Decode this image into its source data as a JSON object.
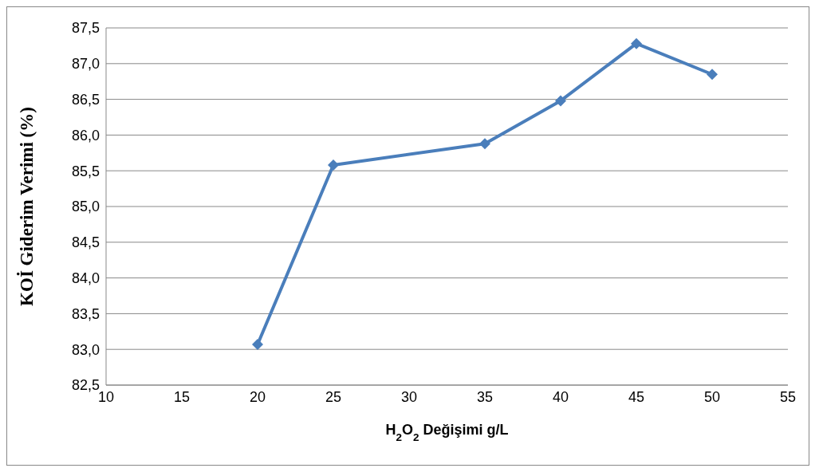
{
  "chart_data": {
    "type": "line",
    "xlabel": "H$_{2}$O$_{2}$ Değişimi g/L",
    "ylabel": "KOİ Giderim Verimi (%)",
    "x": [
      20,
      25,
      35,
      40,
      45,
      50
    ],
    "series": [
      {
        "color": "#4a7ebb",
        "values": [
          83.07,
          85.58,
          85.88,
          86.48,
          87.28,
          86.85
        ]
      }
    ],
    "xlim": [
      10,
      55
    ],
    "xticks": [
      10,
      15,
      20,
      25,
      30,
      35,
      40,
      45,
      50,
      55
    ],
    "ylim": [
      82.5,
      87.5
    ],
    "yticks": [
      {
        "value": 82.5,
        "label": "82,5"
      },
      {
        "value": 83,
        "label": "83,0"
      },
      {
        "value": 83.5,
        "label": "83,5"
      },
      {
        "value": 84,
        "label": "84,0"
      },
      {
        "value": 84.5,
        "label": "84,5"
      },
      {
        "value": 85,
        "label": "85,0"
      },
      {
        "value": 85.5,
        "label": "85,5"
      },
      {
        "value": 86,
        "label": "86,0"
      },
      {
        "value": 86.5,
        "label": "86,5"
      },
      {
        "value": 87,
        "label": "87,0"
      },
      {
        "value": 87.5,
        "label": "87,5"
      }
    ],
    "grid": "y",
    "marker": "diamond",
    "line_style": "solid"
  }
}
